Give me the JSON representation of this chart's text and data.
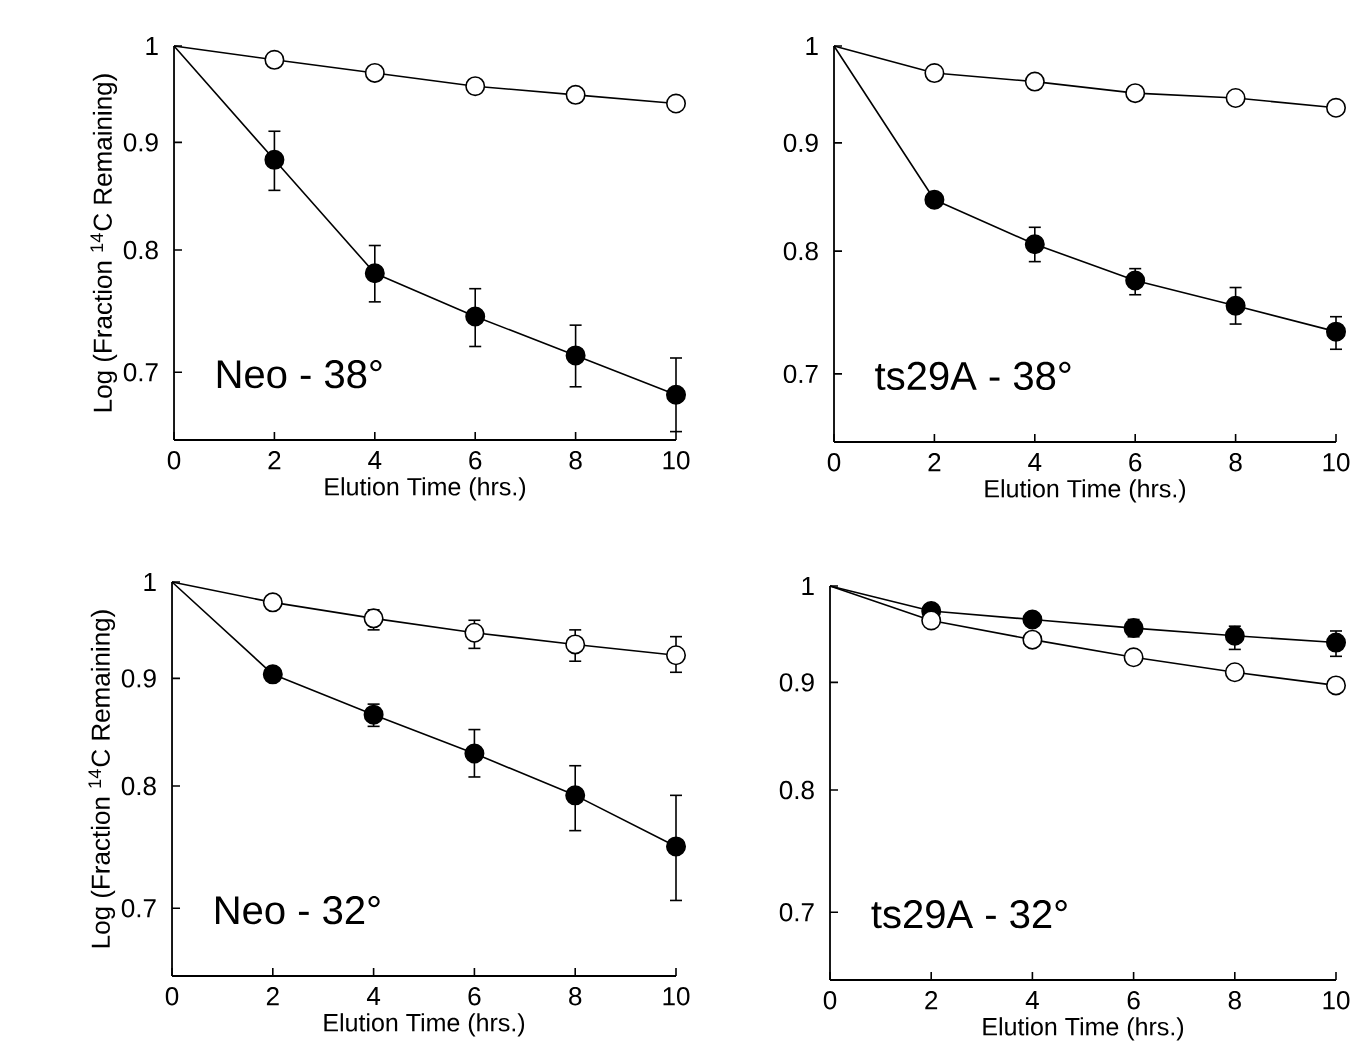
{
  "chart_data": [
    {
      "type": "line",
      "x": [
        0,
        2,
        4,
        6,
        8,
        10
      ],
      "xlabel": "Elution Time (hrs.)",
      "ylabel": "Log (Fraction $^{14}$C Remaining)",
      "log": "y",
      "xlim": [
        0,
        10
      ],
      "ylim": [
        0.65,
        1
      ],
      "xticks": [
        0,
        2,
        4,
        6,
        8,
        10
      ],
      "yticks": [
        0.7,
        0.8,
        0.9,
        1
      ],
      "marker": "circle",
      "line_style": "solid",
      "annotations": [
        "Neo - 38°"
      ],
      "series": [
        {
          "color": "#ffffff",
          "values": [
            1,
            0.985,
            0.971,
            0.957,
            0.948,
            0.939
          ]
        },
        {
          "color": "#000000",
          "values": [
            1,
            0.883,
            0.78,
            0.744,
            0.713,
            0.683
          ],
          "errors": [
            null,
            [
              0.854,
              0.911
            ],
            [
              0.756,
              0.804
            ],
            [
              0.72,
              0.767
            ],
            [
              0.689,
              0.737
            ],
            [
              0.656,
              0.711
            ]
          ]
        }
      ]
    },
    {
      "type": "line",
      "x": [
        0,
        2,
        4,
        6,
        8,
        10
      ],
      "xlabel": "Elution Time (hrs.)",
      "log": "y",
      "xlim": [
        0,
        10
      ],
      "ylim": [
        0.65,
        1
      ],
      "xticks": [
        0,
        2,
        4,
        6,
        8,
        10
      ],
      "yticks": [
        0.7,
        0.8,
        0.9,
        1
      ],
      "marker": "circle",
      "line_style": "solid",
      "annotations": [
        "ts29A - 38°"
      ],
      "series": [
        {
          "color": "#ffffff",
          "values": [
            1,
            0.971,
            0.962,
            0.95,
            0.945,
            0.935
          ]
        },
        {
          "color": "#000000",
          "values": [
            1,
            0.846,
            0.806,
            0.775,
            0.754,
            0.733
          ],
          "errors": [
            null,
            [
              0.84,
              0.852
            ],
            [
              0.791,
              0.821
            ],
            [
              0.763,
              0.785
            ],
            [
              0.739,
              0.769
            ],
            [
              0.719,
              0.745
            ]
          ]
        }
      ]
    },
    {
      "type": "line",
      "x": [
        0,
        2,
        4,
        6,
        8,
        10
      ],
      "xlabel": "Elution Time (hrs.)",
      "ylabel": "Log (Fraction $^{14}$C Remaining)",
      "log": "y",
      "xlim": [
        0,
        10
      ],
      "ylim": [
        0.65,
        1
      ],
      "xticks": [
        0,
        2,
        4,
        6,
        8,
        10
      ],
      "yticks": [
        0.7,
        0.8,
        0.9,
        1
      ],
      "marker": "circle",
      "line_style": "solid",
      "annotations": [
        "Neo - 32°"
      ],
      "series": [
        {
          "color": "#ffffff",
          "values": [
            1,
            0.978,
            0.961,
            0.946,
            0.934,
            0.923
          ],
          "errors": [
            null,
            null,
            [
              0.949,
              0.97
            ],
            [
              0.93,
              0.959
            ],
            [
              0.917,
              0.949
            ],
            [
              0.906,
              0.942
            ]
          ]
        },
        {
          "color": "#000000",
          "values": [
            1,
            0.904,
            0.865,
            0.829,
            0.792,
            0.749
          ],
          "errors": [
            null,
            null,
            [
              0.854,
              0.875
            ],
            [
              0.808,
              0.851
            ],
            [
              0.762,
              0.818
            ],
            [
              0.706,
              0.792
            ]
          ]
        }
      ]
    },
    {
      "type": "line",
      "x": [
        0,
        2,
        4,
        6,
        8,
        10
      ],
      "xlabel": "Elution Time (hrs.)",
      "log": "y",
      "xlim": [
        0,
        10
      ],
      "ylim": [
        0.65,
        1
      ],
      "xticks": [
        0,
        2,
        4,
        6,
        8,
        10
      ],
      "yticks": [
        0.7,
        0.8,
        0.9,
        1
      ],
      "marker": "circle",
      "line_style": "solid",
      "annotations": [
        "ts29A - 32°"
      ],
      "series": [
        {
          "color": "#ffffff",
          "values": [
            1,
            0.963,
            0.943,
            0.925,
            0.91,
            0.897
          ]
        },
        {
          "color": "#000000",
          "values": [
            1,
            0.973,
            0.964,
            0.955,
            0.947,
            0.94
          ],
          "errors": [
            null,
            null,
            null,
            [
              0.946,
              0.964
            ],
            [
              0.933,
              0.957
            ],
            [
              0.926,
              0.952
            ]
          ]
        }
      ]
    }
  ]
}
